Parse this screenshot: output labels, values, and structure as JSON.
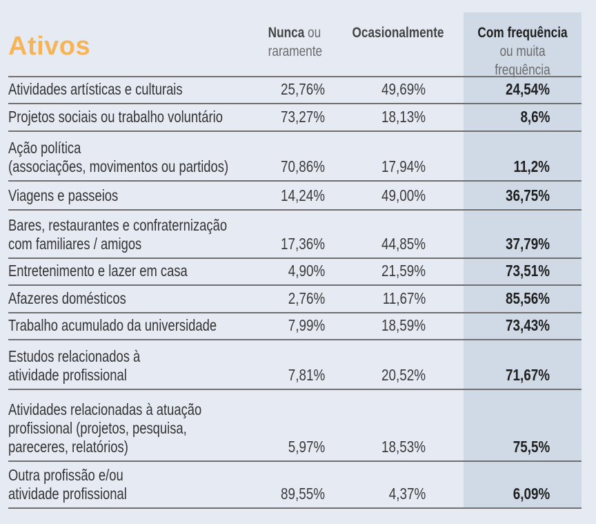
{
  "title": "Ativos",
  "columns": {
    "nunca_bold": "Nunca",
    "nunca_rest": " ou",
    "nunca_line2": "raramente",
    "ocasionalmente": "Ocasionalmente",
    "freq_bold": "Com frequência",
    "freq_line2": "ou muita frequência"
  },
  "colors": {
    "title": "#f6b456",
    "highlight": "#d0dae6",
    "background": "#e6ebf3"
  },
  "rows": [
    {
      "label": "Atividades artísticas e culturais",
      "nunca": "25,76%",
      "ocasionalmente": "49,69%",
      "frequencia": "24,54%"
    },
    {
      "label": "Projetos sociais ou trabalho voluntário",
      "nunca": "73,27%",
      "ocasionalmente": "18,13%",
      "frequencia": "8,6%"
    },
    {
      "label": "Ação política\n(associações, movimentos ou partidos)",
      "nunca": "70,86%",
      "ocasionalmente": "17,94%",
      "frequencia": "11,2%"
    },
    {
      "label": "Viagens e passeios",
      "nunca": "14,24%",
      "ocasionalmente": "49,00%",
      "frequencia": "36,75%"
    },
    {
      "label": "Bares, restaurantes e confraternização\ncom familiares / amigos",
      "nunca": "17,36%",
      "ocasionalmente": "44,85%",
      "frequencia": "37,79%"
    },
    {
      "label": "Entretenimento e lazer em casa",
      "nunca": "4,90%",
      "ocasionalmente": "21,59%",
      "frequencia": "73,51%"
    },
    {
      "label": "Afazeres domésticos",
      "nunca": "2,76%",
      "ocasionalmente": "11,67%",
      "frequencia": "85,56%"
    },
    {
      "label": "Trabalho acumulado da universidade",
      "nunca": "7,99%",
      "ocasionalmente": "18,59%",
      "frequencia": "73,43%"
    },
    {
      "label": "Estudos relacionados à\natividade profissional",
      "nunca": "7,81%",
      "ocasionalmente": "20,52%",
      "frequencia": "71,67%"
    },
    {
      "label": "Atividades relacionadas à atuação\nprofissional (projetos, pesquisa,\npareceres, relatórios)",
      "nunca": "5,97%",
      "ocasionalmente": "18,53%",
      "frequencia": "75,5%"
    },
    {
      "label": "Outra profissão e/ou\natividade profissional",
      "nunca": "89,55%",
      "ocasionalmente": "4,37%",
      "frequencia": "6,09%"
    }
  ]
}
